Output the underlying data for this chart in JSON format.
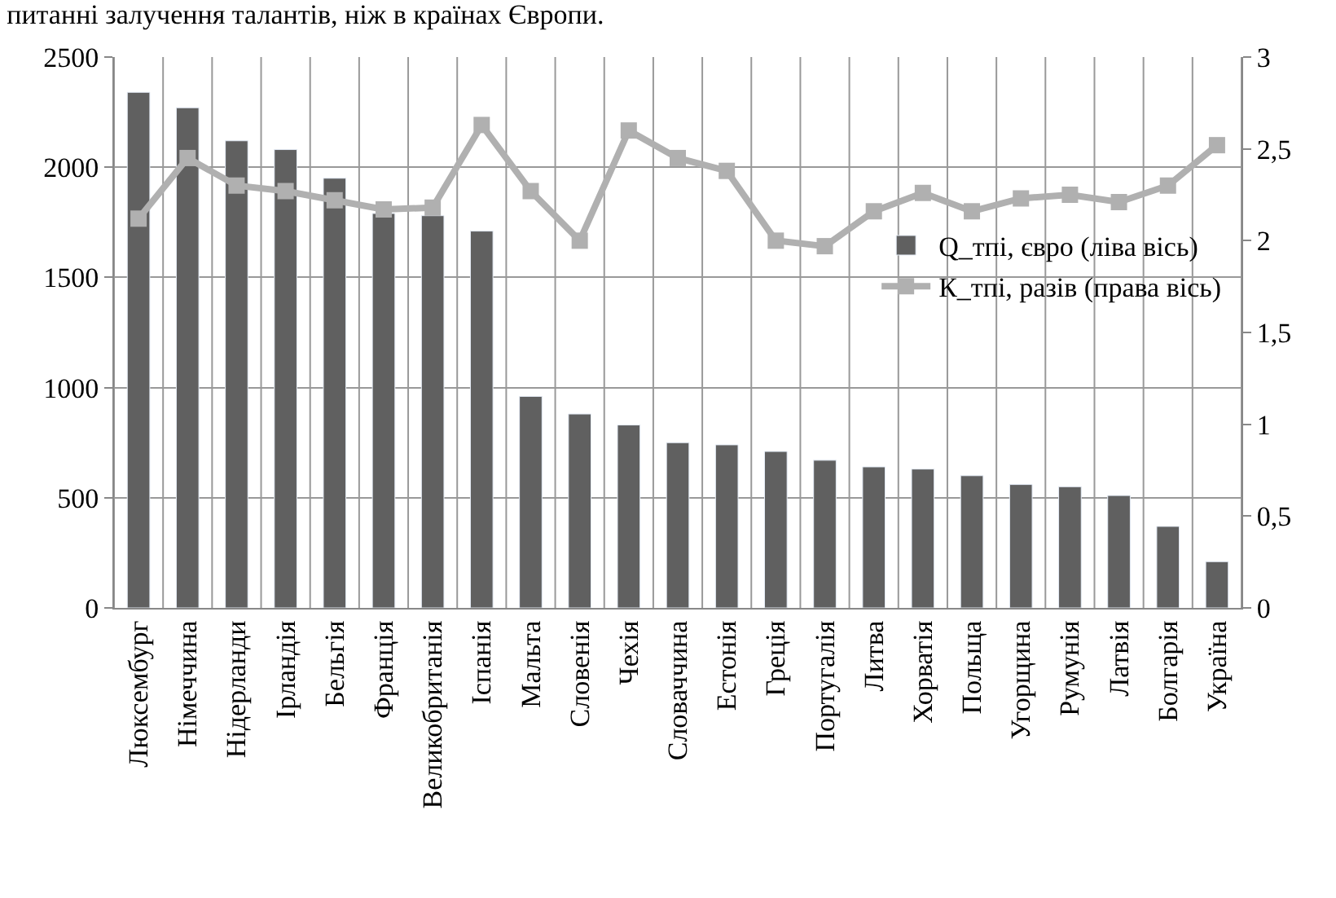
{
  "chart_data": {
    "type": "bar",
    "title": "питанні залучення талантів, ніж в країнах Європи.",
    "categories": [
      "Люксембург",
      "Німеччина",
      "Нідерланди",
      "Ірландія",
      "Бельгія",
      "Франція",
      "Великобританія",
      "Іспанія",
      "Мальта",
      "Словенія",
      "Чехія",
      "Словаччина",
      "Естонія",
      "Греція",
      "Португалія",
      "Литва",
      "Хорватія",
      "Польща",
      "Угорщина",
      "Румунія",
      "Латвія",
      "Болгарія",
      "Україна"
    ],
    "series": [
      {
        "name": "Q_тпі, євро (ліва вісь)",
        "color": "#606060",
        "values": [
          2340,
          2270,
          2120,
          2080,
          1950,
          1790,
          1780,
          1710,
          960,
          880,
          830,
          750,
          740,
          710,
          670,
          640,
          630,
          600,
          560,
          550,
          510,
          370,
          210
        ]
      },
      {
        "name": "К_тпі, разів (права вісь)",
        "type": "line",
        "axis": "y2",
        "color": "#b0b0b0",
        "marker": "square",
        "values": [
          2.12,
          2.45,
          2.3,
          2.27,
          2.22,
          2.17,
          2.18,
          2.63,
          2.27,
          2.0,
          2.6,
          2.45,
          2.38,
          2.0,
          1.97,
          2.16,
          2.26,
          2.16,
          2.23,
          2.25,
          2.21,
          2.3,
          2.52
        ]
      }
    ],
    "ylim": [
      0,
      2500
    ],
    "yticks": [
      0,
      500,
      1000,
      1500,
      2000,
      2500
    ],
    "y2lim": [
      0,
      3
    ],
    "y2ticks": [
      0,
      {
        "value": 0.5,
        "label": "0,5"
      },
      1,
      {
        "value": 1.5,
        "label": "1,5"
      },
      2,
      {
        "value": 2.5,
        "label": "2,5"
      },
      3
    ],
    "grid": true,
    "legend": "right"
  }
}
